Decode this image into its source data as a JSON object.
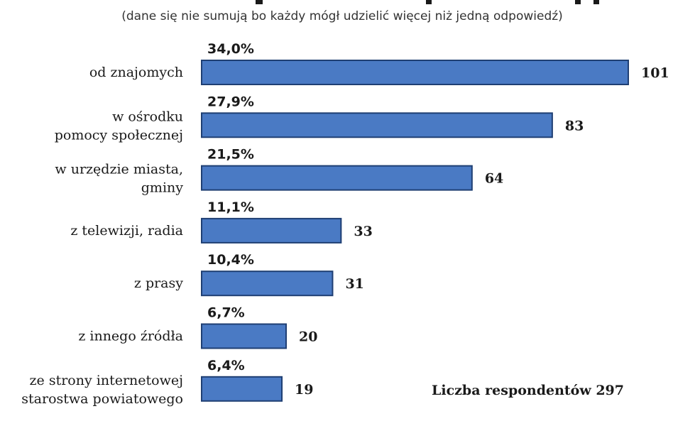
{
  "chart_data": {
    "type": "bar",
    "orientation": "horizontal",
    "title": "",
    "subtitle": "(dane się nie sumują bo każdy mógł udzielić więcej niż jedną odpowiedź)",
    "categories": [
      [
        "od znajomych"
      ],
      [
        "w ośrodku",
        "pomocy społecznej"
      ],
      [
        "w urzędzie miasta,",
        "gminy"
      ],
      [
        "z telewizji, radia"
      ],
      [
        "z prasy"
      ],
      [
        "z innego źródła"
      ],
      [
        "ze strony internetowej",
        "starostwa powiatowego"
      ]
    ],
    "values": [
      101,
      83,
      64,
      33,
      31,
      20,
      19
    ],
    "percent_labels": [
      "34,0%",
      "27,9%",
      "21,5%",
      "11,1%",
      "10,4%",
      "6,7%",
      "6,4%"
    ],
    "xlim": [
      0,
      101
    ],
    "grid": false,
    "legend": "none",
    "bar_color": "#4a7ac4",
    "bar_edge_color": "#1f3f73",
    "annotation": "Liczba respondentów 297"
  }
}
